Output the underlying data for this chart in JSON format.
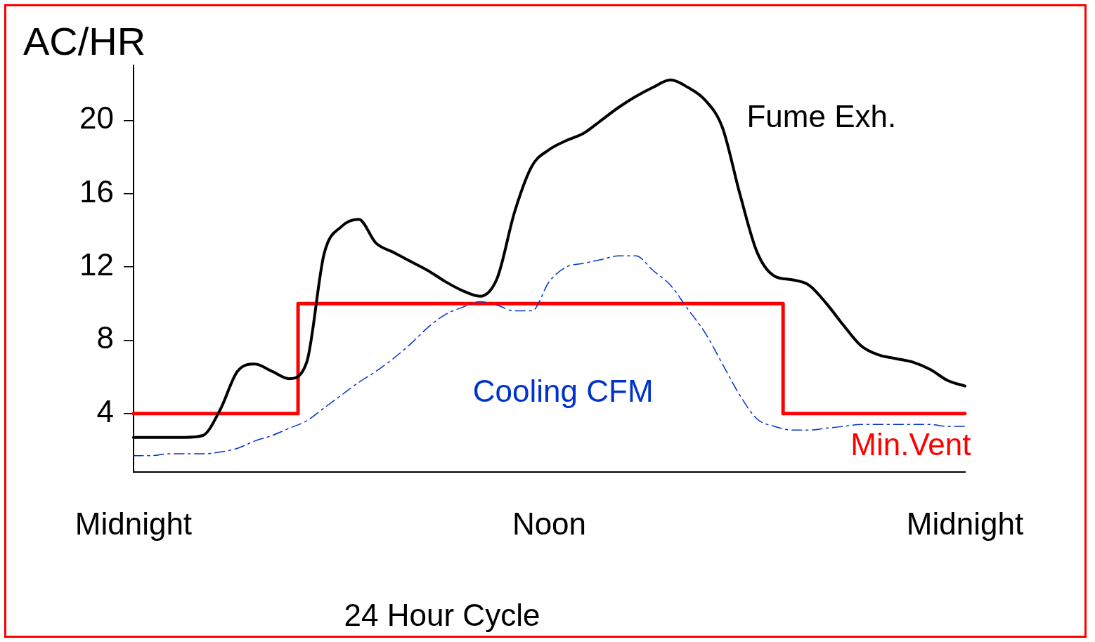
{
  "chart_data": {
    "type": "line",
    "ylabel": "AC/HR",
    "xlabel": "24 Hour Cycle",
    "categories": [
      "Midnight",
      null,
      null,
      null,
      null,
      null,
      null,
      null,
      null,
      null,
      null,
      null,
      null,
      null,
      null,
      null,
      null,
      null,
      null,
      null,
      null,
      null,
      null,
      null,
      "Noon",
      null,
      null,
      null,
      null,
      null,
      null,
      null,
      null,
      null,
      null,
      null,
      null,
      null,
      null,
      null,
      null,
      null,
      null,
      null,
      null,
      null,
      null,
      null,
      "Midnight"
    ],
    "ylim": [
      0.8,
      23
    ],
    "yticks": [
      4,
      8,
      12,
      16,
      20
    ],
    "grid": false,
    "legend": false,
    "marker": "none",
    "series": [
      {
        "name": "Fume Exh.",
        "color": "#000000",
        "line_style": "solid",
        "values": [
          2.7,
          2.7,
          2.7,
          2.7,
          2.8,
          4.2,
          6.3,
          6.7,
          6.3,
          5.9,
          6.8,
          12.7,
          14.2,
          14.6,
          13.3,
          12.8,
          12.3,
          11.8,
          11.2,
          10.7,
          10.4,
          11.4,
          15.0,
          17.5,
          18.4,
          18.9,
          19.3,
          20.0,
          20.7,
          21.3,
          21.8,
          22.2,
          21.8,
          21.1,
          19.6,
          16.0,
          12.8,
          11.5,
          11.3,
          11.0,
          10.0,
          8.8,
          7.7,
          7.2,
          7.0,
          6.8,
          6.4,
          5.8,
          5.5
        ]
      },
      {
        "name": "Cooling CFM",
        "color": "#0033cc",
        "line_style": "dashed",
        "values": [
          1.7,
          1.7,
          1.8,
          1.8,
          1.8,
          1.9,
          2.1,
          2.5,
          2.8,
          3.2,
          3.6,
          4.3,
          5.0,
          5.7,
          6.3,
          7.0,
          7.8,
          8.7,
          9.4,
          9.8,
          10.1,
          9.9,
          9.6,
          9.6,
          11.2,
          12.0,
          12.2,
          12.4,
          12.6,
          12.6,
          11.8,
          11.0,
          9.7,
          8.4,
          6.7,
          5.0,
          3.7,
          3.3,
          3.1,
          3.1,
          3.2,
          3.3,
          3.4,
          3.4,
          3.4,
          3.4,
          3.4,
          3.3,
          3.3
        ]
      },
      {
        "name": "Min.Vent",
        "type": "step",
        "color": "#ff0000",
        "line_style": "solid",
        "values": [
          4,
          4,
          4,
          4,
          4,
          4,
          4,
          4,
          4,
          4,
          10,
          10,
          10,
          10,
          10,
          10,
          10,
          10,
          10,
          10,
          10,
          10,
          10,
          10,
          10,
          10,
          10,
          10,
          10,
          10,
          10,
          10,
          10,
          10,
          10,
          10,
          10,
          10,
          4,
          4,
          4,
          4,
          4,
          4,
          4,
          4,
          4,
          4,
          4
        ]
      }
    ]
  }
}
